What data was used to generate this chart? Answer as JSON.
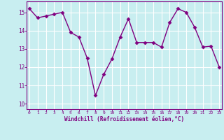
{
  "x": [
    0,
    1,
    2,
    3,
    4,
    5,
    6,
    7,
    8,
    9,
    10,
    11,
    12,
    13,
    14,
    15,
    16,
    17,
    18,
    19,
    20,
    21,
    22,
    23
  ],
  "y": [
    15.2,
    14.7,
    14.8,
    14.9,
    15.0,
    13.9,
    13.65,
    12.5,
    10.45,
    11.6,
    12.45,
    13.65,
    14.65,
    13.35,
    13.35,
    13.35,
    13.1,
    14.45,
    15.2,
    15.0,
    14.2,
    13.1,
    13.15,
    12.0
  ],
  "line_color": "#800080",
  "marker": "D",
  "markersize": 2.5,
  "linewidth": 1.0,
  "bg_color": "#c8eef0",
  "grid_color": "#aadddd",
  "xlabel": "Windchill (Refroidissement éolien,°C)",
  "xlabel_color": "#800080",
  "tick_color": "#800080",
  "spine_color": "#800080",
  "yticks": [
    10,
    11,
    12,
    13,
    14,
    15
  ],
  "xticks": [
    0,
    1,
    2,
    3,
    4,
    5,
    6,
    7,
    8,
    9,
    10,
    11,
    12,
    13,
    14,
    15,
    16,
    17,
    18,
    19,
    20,
    21,
    22,
    23
  ],
  "ylim": [
    9.7,
    15.6
  ],
  "xlim": [
    -0.3,
    23.3
  ]
}
